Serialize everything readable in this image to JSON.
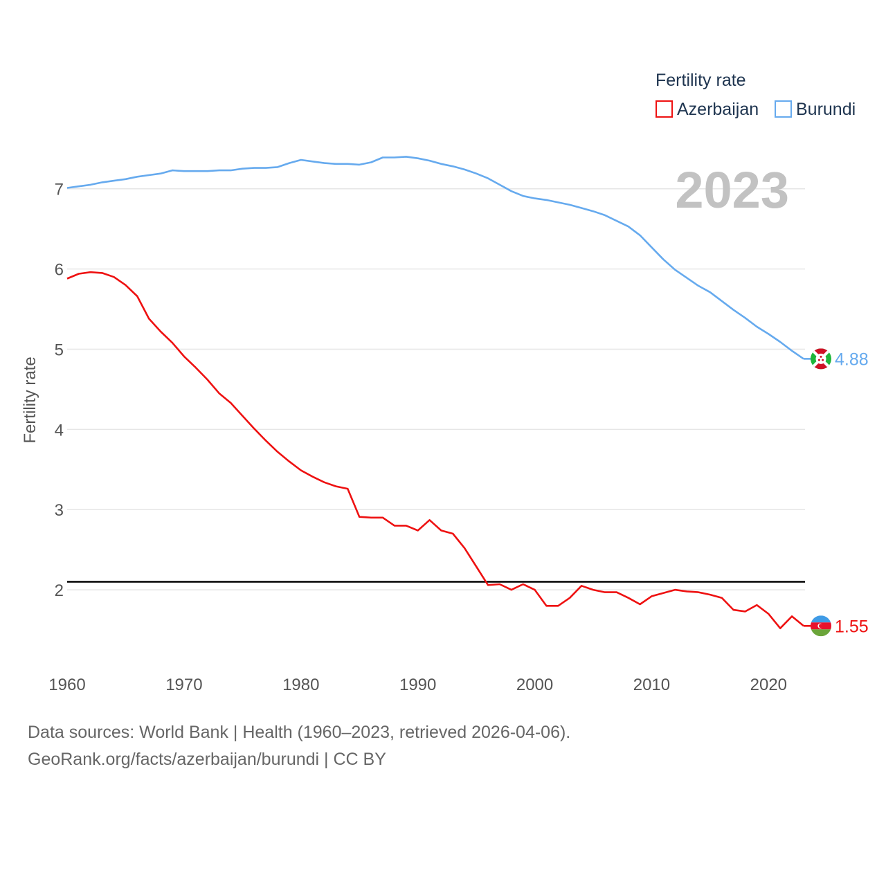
{
  "chart_data": {
    "type": "line",
    "ylabel": "Fertility rate",
    "xlabel": "",
    "xlim": [
      1960,
      2023
    ],
    "ylim": [
      1.0,
      7.8
    ],
    "xticks": [
      1960,
      1970,
      1980,
      1990,
      2000,
      2010,
      2020
    ],
    "yticks": [
      2,
      3,
      4,
      5,
      6,
      7
    ],
    "grid": true,
    "legend": {
      "title": "Fertility rate",
      "placement": "top-right",
      "entries": [
        "Azerbaijan",
        "Burundi"
      ]
    },
    "year_label": "2023",
    "reference_line": {
      "y": 2.1,
      "color": "#000000"
    },
    "x": [
      1960,
      1961,
      1962,
      1963,
      1964,
      1965,
      1966,
      1967,
      1968,
      1969,
      1970,
      1971,
      1972,
      1973,
      1974,
      1975,
      1976,
      1977,
      1978,
      1979,
      1980,
      1981,
      1982,
      1983,
      1984,
      1985,
      1986,
      1987,
      1988,
      1989,
      1990,
      1991,
      1992,
      1993,
      1994,
      1995,
      1996,
      1997,
      1998,
      1999,
      2000,
      2001,
      2002,
      2003,
      2004,
      2005,
      2006,
      2007,
      2008,
      2009,
      2010,
      2011,
      2012,
      2013,
      2014,
      2015,
      2016,
      2017,
      2018,
      2019,
      2020,
      2021,
      2022,
      2023
    ],
    "series": [
      {
        "name": "Azerbaijan",
        "color": "#ee1111",
        "end_label": "1.55",
        "values": [
          5.88,
          5.94,
          5.96,
          5.95,
          5.9,
          5.8,
          5.66,
          5.38,
          5.22,
          5.08,
          4.91,
          4.77,
          4.62,
          4.45,
          4.33,
          4.17,
          4.01,
          3.86,
          3.72,
          3.6,
          3.49,
          3.41,
          3.34,
          3.29,
          3.26,
          2.91,
          2.9,
          2.9,
          2.8,
          2.8,
          2.74,
          2.87,
          2.74,
          2.7,
          2.52,
          2.29,
          2.06,
          2.07,
          2.0,
          2.07,
          2.0,
          1.8,
          1.8,
          1.9,
          2.05,
          2.0,
          1.97,
          1.97,
          1.9,
          1.82,
          1.92,
          1.96,
          2.0,
          1.98,
          1.97,
          1.94,
          1.9,
          1.75,
          1.73,
          1.81,
          1.7,
          1.52,
          1.67,
          1.55
        ]
      },
      {
        "name": "Burundi",
        "color": "#66aaee",
        "end_label": "4.88",
        "values": [
          7.01,
          7.03,
          7.05,
          7.08,
          7.1,
          7.12,
          7.15,
          7.17,
          7.19,
          7.23,
          7.22,
          7.22,
          7.22,
          7.23,
          7.23,
          7.25,
          7.26,
          7.26,
          7.27,
          7.32,
          7.36,
          7.34,
          7.32,
          7.31,
          7.31,
          7.3,
          7.33,
          7.39,
          7.39,
          7.4,
          7.38,
          7.35,
          7.31,
          7.28,
          7.24,
          7.19,
          7.13,
          7.05,
          6.97,
          6.91,
          6.88,
          6.86,
          6.83,
          6.8,
          6.76,
          6.72,
          6.67,
          6.6,
          6.53,
          6.42,
          6.27,
          6.12,
          5.99,
          5.89,
          5.79,
          5.71,
          5.6,
          5.49,
          5.39,
          5.28,
          5.19,
          5.09,
          4.98,
          4.88
        ]
      }
    ]
  },
  "footer": {
    "line1": "Data sources: World Bank | Health (1960–2023, retrieved 2026-04-06).",
    "line2": "GeoRank.org/facts/azerbaijan/burundi | CC BY"
  }
}
